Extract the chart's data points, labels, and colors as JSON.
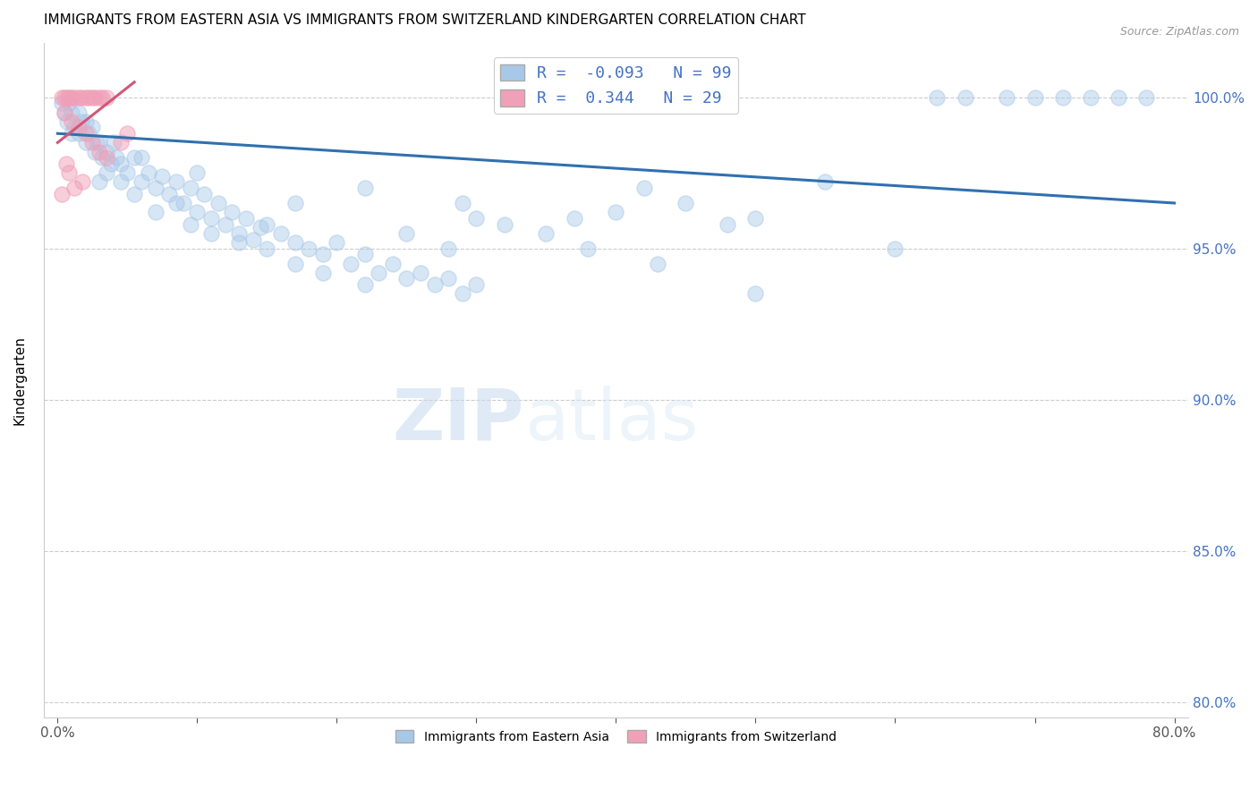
{
  "title": "IMMIGRANTS FROM EASTERN ASIA VS IMMIGRANTS FROM SWITZERLAND KINDERGARTEN CORRELATION CHART",
  "source": "Source: ZipAtlas.com",
  "ylabel": "Kindergarten",
  "x_tick_labels": [
    "0.0%",
    "",
    "",
    "",
    "",
    "",
    "",
    "",
    "80.0%"
  ],
  "x_tick_vals": [
    0,
    10,
    20,
    30,
    40,
    50,
    60,
    70,
    80
  ],
  "y_tick_labels": [
    "80.0%",
    "85.0%",
    "90.0%",
    "95.0%",
    "100.0%"
  ],
  "y_tick_vals": [
    80,
    85,
    90,
    95,
    100
  ],
  "xlim": [
    -1,
    81
  ],
  "ylim": [
    79.5,
    101.8
  ],
  "watermark_zip": "ZIP",
  "watermark_atlas": "atlas",
  "legend_blue_label": "Immigrants from Eastern Asia",
  "legend_pink_label": "Immigrants from Switzerland",
  "R_blue": -0.093,
  "N_blue": 99,
  "R_pink": 0.344,
  "N_pink": 29,
  "blue_color": "#a8c8e8",
  "pink_color": "#f0a0b8",
  "blue_line_color": "#3070b0",
  "pink_line_color": "#d05878",
  "blue_line_x": [
    0,
    80
  ],
  "blue_line_y": [
    98.8,
    96.5
  ],
  "pink_line_x": [
    0,
    5.5
  ],
  "pink_line_y": [
    98.5,
    100.5
  ],
  "blue_scatter": [
    [
      0.3,
      99.8
    ],
    [
      0.5,
      99.5
    ],
    [
      0.7,
      99.2
    ],
    [
      0.8,
      99.8
    ],
    [
      1.0,
      99.5
    ],
    [
      1.2,
      99.0
    ],
    [
      1.5,
      98.8
    ],
    [
      1.7,
      99.2
    ],
    [
      2.0,
      98.5
    ],
    [
      2.2,
      98.8
    ],
    [
      2.5,
      99.0
    ],
    [
      2.7,
      98.2
    ],
    [
      3.0,
      98.5
    ],
    [
      3.2,
      98.0
    ],
    [
      3.5,
      98.2
    ],
    [
      3.8,
      97.8
    ],
    [
      4.0,
      98.5
    ],
    [
      4.2,
      98.0
    ],
    [
      4.5,
      97.8
    ],
    [
      5.0,
      97.5
    ],
    [
      5.5,
      98.0
    ],
    [
      6.0,
      97.2
    ],
    [
      6.5,
      97.5
    ],
    [
      7.0,
      97.0
    ],
    [
      7.5,
      97.4
    ],
    [
      8.0,
      96.8
    ],
    [
      8.5,
      97.2
    ],
    [
      9.0,
      96.5
    ],
    [
      9.5,
      97.0
    ],
    [
      10.0,
      96.2
    ],
    [
      10.5,
      96.8
    ],
    [
      11.0,
      96.0
    ],
    [
      11.5,
      96.5
    ],
    [
      12.0,
      95.8
    ],
    [
      12.5,
      96.2
    ],
    [
      13.0,
      95.5
    ],
    [
      13.5,
      96.0
    ],
    [
      14.0,
      95.3
    ],
    [
      14.5,
      95.7
    ],
    [
      15.0,
      95.0
    ],
    [
      16.0,
      95.5
    ],
    [
      17.0,
      95.2
    ],
    [
      18.0,
      95.0
    ],
    [
      19.0,
      94.8
    ],
    [
      20.0,
      95.2
    ],
    [
      21.0,
      94.5
    ],
    [
      22.0,
      94.8
    ],
    [
      23.0,
      94.2
    ],
    [
      24.0,
      94.5
    ],
    [
      25.0,
      94.0
    ],
    [
      26.0,
      94.2
    ],
    [
      27.0,
      93.8
    ],
    [
      28.0,
      94.0
    ],
    [
      29.0,
      93.5
    ],
    [
      30.0,
      93.8
    ],
    [
      1.0,
      98.8
    ],
    [
      1.5,
      99.5
    ],
    [
      2.0,
      99.2
    ],
    [
      2.8,
      98.5
    ],
    [
      3.5,
      97.5
    ],
    [
      4.5,
      97.2
    ],
    [
      5.5,
      96.8
    ],
    [
      7.0,
      96.2
    ],
    [
      8.5,
      96.5
    ],
    [
      9.5,
      95.8
    ],
    [
      11.0,
      95.5
    ],
    [
      13.0,
      95.2
    ],
    [
      15.0,
      95.8
    ],
    [
      17.0,
      94.5
    ],
    [
      19.0,
      94.2
    ],
    [
      22.0,
      93.8
    ],
    [
      25.0,
      95.5
    ],
    [
      28.0,
      95.0
    ],
    [
      30.0,
      96.0
    ],
    [
      32.0,
      95.8
    ],
    [
      35.0,
      95.5
    ],
    [
      38.0,
      95.0
    ],
    [
      40.0,
      96.2
    ],
    [
      43.0,
      94.5
    ],
    [
      45.0,
      96.5
    ],
    [
      48.0,
      95.8
    ],
    [
      50.0,
      96.0
    ],
    [
      55.0,
      97.2
    ],
    [
      60.0,
      95.0
    ],
    [
      65.0,
      100.0
    ],
    [
      68.0,
      100.0
    ],
    [
      70.0,
      100.0
    ],
    [
      72.0,
      100.0
    ],
    [
      74.0,
      100.0
    ],
    [
      76.0,
      100.0
    ],
    [
      78.0,
      100.0
    ],
    [
      3.0,
      97.2
    ],
    [
      6.0,
      98.0
    ],
    [
      10.0,
      97.5
    ],
    [
      17.0,
      96.5
    ],
    [
      22.0,
      97.0
    ],
    [
      29.0,
      96.5
    ],
    [
      37.0,
      96.0
    ],
    [
      42.0,
      97.0
    ],
    [
      50.0,
      93.5
    ],
    [
      63.0,
      100.0
    ]
  ],
  "pink_scatter": [
    [
      0.3,
      100.0
    ],
    [
      0.5,
      100.0
    ],
    [
      0.7,
      100.0
    ],
    [
      0.8,
      100.0
    ],
    [
      1.0,
      100.0
    ],
    [
      1.2,
      100.0
    ],
    [
      1.5,
      100.0
    ],
    [
      1.7,
      100.0
    ],
    [
      2.0,
      100.0
    ],
    [
      2.2,
      100.0
    ],
    [
      2.5,
      100.0
    ],
    [
      2.7,
      100.0
    ],
    [
      3.0,
      100.0
    ],
    [
      3.2,
      100.0
    ],
    [
      3.5,
      100.0
    ],
    [
      0.5,
      99.5
    ],
    [
      1.0,
      99.2
    ],
    [
      1.5,
      99.0
    ],
    [
      2.0,
      98.8
    ],
    [
      2.5,
      98.5
    ],
    [
      3.0,
      98.2
    ],
    [
      0.8,
      97.5
    ],
    [
      1.2,
      97.0
    ],
    [
      1.8,
      97.2
    ],
    [
      3.5,
      98.0
    ],
    [
      4.5,
      98.5
    ],
    [
      5.0,
      98.8
    ],
    [
      0.3,
      96.8
    ],
    [
      0.6,
      97.8
    ]
  ]
}
